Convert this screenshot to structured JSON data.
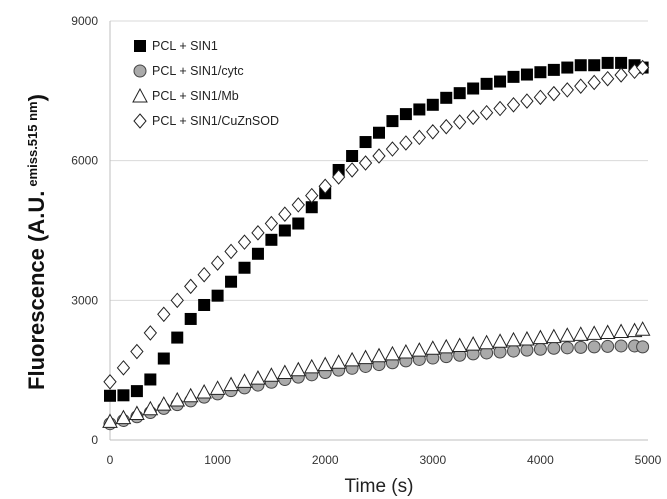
{
  "chart_data": {
    "type": "scatter",
    "title": "",
    "xlabel": "Time (s)",
    "ylabel_main": "Fluorescence (A.U.",
    "ylabel_super": "emiss.515 nm",
    "ylabel_close": ")",
    "xlim": [
      0,
      5000
    ],
    "ylim": [
      0,
      9000
    ],
    "xticks": [
      0,
      1000,
      2000,
      3000,
      4000,
      5000
    ],
    "yticks": [
      0,
      3000,
      6000,
      9000
    ],
    "grid": "horizontal",
    "legend_position": "top-left",
    "colors": {
      "black_fill": "#000000",
      "grey_fill": "#aaaaaa",
      "white_fill": "#ffffff",
      "gridline": "#d9d9d9",
      "axis": "#bfbfbf"
    },
    "series": [
      {
        "name": "PCL + SIN1",
        "marker": "square",
        "x": [
          0,
          125,
          250,
          375,
          500,
          625,
          750,
          875,
          1000,
          1125,
          1250,
          1375,
          1500,
          1625,
          1750,
          1875,
          2000,
          2125,
          2250,
          2375,
          2500,
          2625,
          2750,
          2875,
          3000,
          3125,
          3250,
          3375,
          3500,
          3625,
          3750,
          3875,
          4000,
          4125,
          4250,
          4375,
          4500,
          4625,
          4750,
          4875,
          4950
        ],
        "y": [
          950,
          960,
          1050,
          1300,
          1750,
          2200,
          2600,
          2900,
          3100,
          3400,
          3700,
          4000,
          4300,
          4500,
          4650,
          5000,
          5300,
          5800,
          6100,
          6400,
          6600,
          6850,
          7000,
          7100,
          7200,
          7350,
          7450,
          7550,
          7650,
          7700,
          7800,
          7850,
          7900,
          7950,
          8000,
          8050,
          8050,
          8100,
          8100,
          8050,
          8000
        ]
      },
      {
        "name": "PCL + SIN1/cytc",
        "marker": "circle",
        "x": [
          0,
          125,
          250,
          375,
          500,
          625,
          750,
          875,
          1000,
          1125,
          1250,
          1375,
          1500,
          1625,
          1750,
          1875,
          2000,
          2125,
          2250,
          2375,
          2500,
          2625,
          2750,
          2875,
          3000,
          3125,
          3250,
          3375,
          3500,
          3625,
          3750,
          3875,
          4000,
          4125,
          4250,
          4375,
          4500,
          4625,
          4750,
          4875,
          4950
        ],
        "y": [
          350,
          420,
          500,
          590,
          680,
          760,
          840,
          920,
          990,
          1060,
          1120,
          1180,
          1240,
          1300,
          1350,
          1400,
          1450,
          1500,
          1540,
          1580,
          1620,
          1660,
          1700,
          1730,
          1760,
          1790,
          1820,
          1850,
          1870,
          1890,
          1910,
          1930,
          1950,
          1970,
          1980,
          1990,
          2000,
          2010,
          2020,
          2020,
          2000
        ]
      },
      {
        "name": "PCL + SIN1/Mb",
        "marker": "triangle",
        "x": [
          0,
          125,
          250,
          375,
          500,
          625,
          750,
          875,
          1000,
          1125,
          1250,
          1375,
          1500,
          1625,
          1750,
          1875,
          2000,
          2125,
          2250,
          2375,
          2500,
          2625,
          2750,
          2875,
          3000,
          3125,
          3250,
          3375,
          3500,
          3625,
          3750,
          3875,
          4000,
          4125,
          4250,
          4375,
          4500,
          4625,
          4750,
          4875,
          4950
        ],
        "y": [
          400,
          480,
          570,
          670,
          770,
          860,
          950,
          1030,
          1110,
          1190,
          1260,
          1330,
          1390,
          1450,
          1510,
          1570,
          1620,
          1670,
          1720,
          1770,
          1810,
          1850,
          1890,
          1930,
          1970,
          2000,
          2030,
          2060,
          2090,
          2120,
          2150,
          2170,
          2200,
          2220,
          2250,
          2270,
          2290,
          2310,
          2330,
          2350,
          2380
        ]
      },
      {
        "name": "PCL + SIN1/CuZnSOD",
        "marker": "diamond",
        "x": [
          0,
          125,
          250,
          375,
          500,
          625,
          750,
          875,
          1000,
          1125,
          1250,
          1375,
          1500,
          1625,
          1750,
          1875,
          2000,
          2125,
          2250,
          2375,
          2500,
          2625,
          2750,
          2875,
          3000,
          3125,
          3250,
          3375,
          3500,
          3625,
          3750,
          3875,
          4000,
          4125,
          4250,
          4375,
          4500,
          4625,
          4750,
          4875,
          4950
        ],
        "y": [
          1250,
          1550,
          1900,
          2300,
          2700,
          3000,
          3300,
          3550,
          3800,
          4050,
          4250,
          4450,
          4650,
          4850,
          5050,
          5250,
          5450,
          5650,
          5800,
          5950,
          6100,
          6250,
          6380,
          6500,
          6620,
          6730,
          6830,
          6930,
          7030,
          7120,
          7200,
          7280,
          7360,
          7440,
          7520,
          7600,
          7680,
          7760,
          7840,
          7920,
          8000
        ]
      }
    ]
  }
}
